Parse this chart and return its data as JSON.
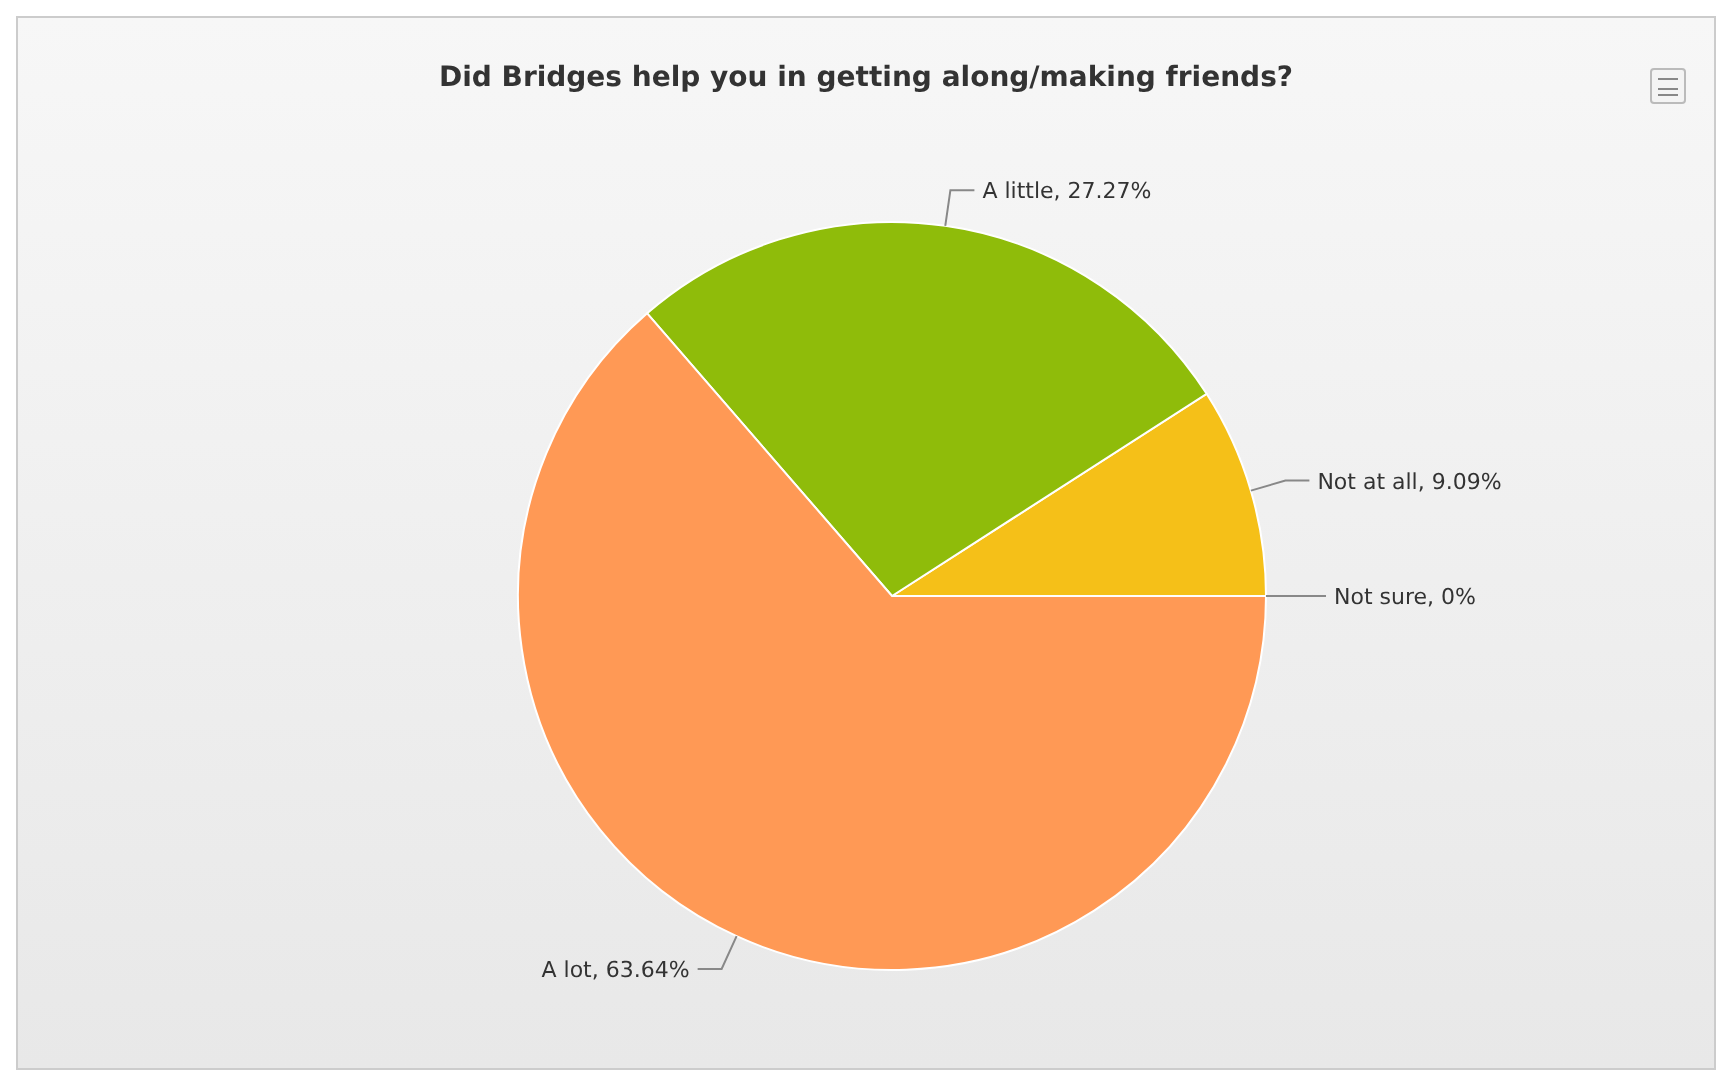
{
  "chart_data": {
    "type": "pie",
    "title": "Did Bridges help you in getting along/making friends?",
    "categories": [
      "Not sure",
      "Not at all",
      "A little",
      "A lot"
    ],
    "values": [
      0,
      9.09,
      27.27,
      63.64
    ],
    "value_labels": [
      "0%",
      "9.09%",
      "27.27%",
      "63.64%"
    ],
    "colors": [
      "#4f81bd",
      "#f5c018",
      "#8fbc0a",
      "#ff9955"
    ]
  }
}
